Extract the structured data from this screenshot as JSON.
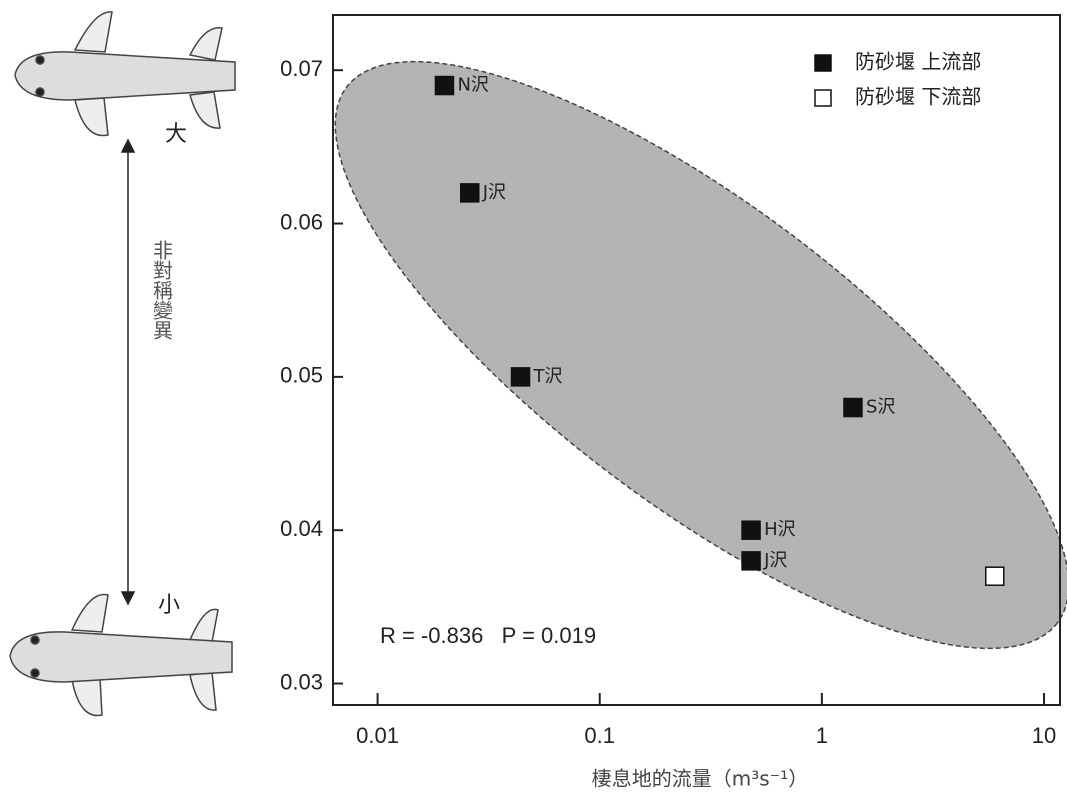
{
  "chart_data": {
    "type": "scatter",
    "x_label": "棲息地的流量（m³s⁻¹）",
    "y_label": "非對稱變異",
    "annotations": [
      "R = -0.836   P = 0.019",
      "大",
      "小"
    ],
    "log_x": true,
    "xlim": [
      0.0063,
      11.8
    ],
    "xticks": [
      0.01,
      0.1,
      1,
      10
    ],
    "ylim": [
      0.0286,
      0.0736
    ],
    "yticks": [
      0.03,
      0.04,
      0.05,
      0.06,
      0.07
    ],
    "legend": "upper right",
    "series": [
      {
        "name": "防砂堰 上流部",
        "color": "#111111",
        "filled": true,
        "x": [
          0.02,
          0.026,
          0.044,
          1.38,
          0.48,
          0.48
        ],
        "values": [
          0.069,
          0.062,
          0.05,
          0.048,
          0.04,
          0.038
        ],
        "point_labels": [
          "N沢",
          "J沢",
          "T沢",
          "S沢",
          "H沢",
          "J沢"
        ]
      },
      {
        "name": "防砂堰 下流部",
        "color": "#111111",
        "filled": false,
        "x": [
          6.0
        ],
        "values": [
          0.037
        ]
      }
    ]
  }
}
